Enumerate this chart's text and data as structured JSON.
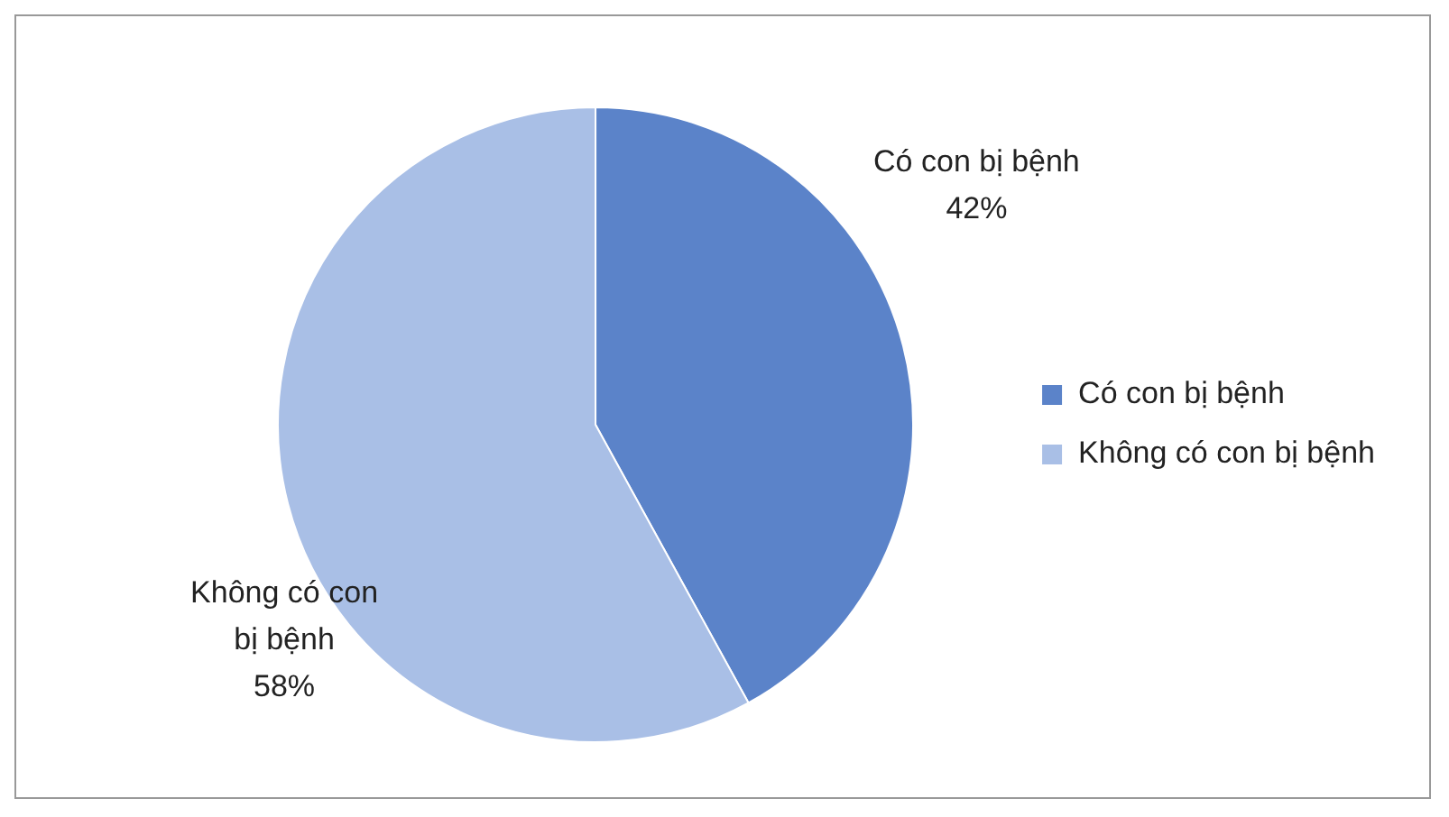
{
  "chart_data": {
    "type": "pie",
    "categories": [
      "Có con bị bệnh",
      "Không có con bị bệnh"
    ],
    "values": [
      42,
      58
    ],
    "value_labels": [
      "42%",
      "58%"
    ],
    "colors": [
      "#5b83c9",
      "#a9bfe6"
    ],
    "legend": "right"
  }
}
